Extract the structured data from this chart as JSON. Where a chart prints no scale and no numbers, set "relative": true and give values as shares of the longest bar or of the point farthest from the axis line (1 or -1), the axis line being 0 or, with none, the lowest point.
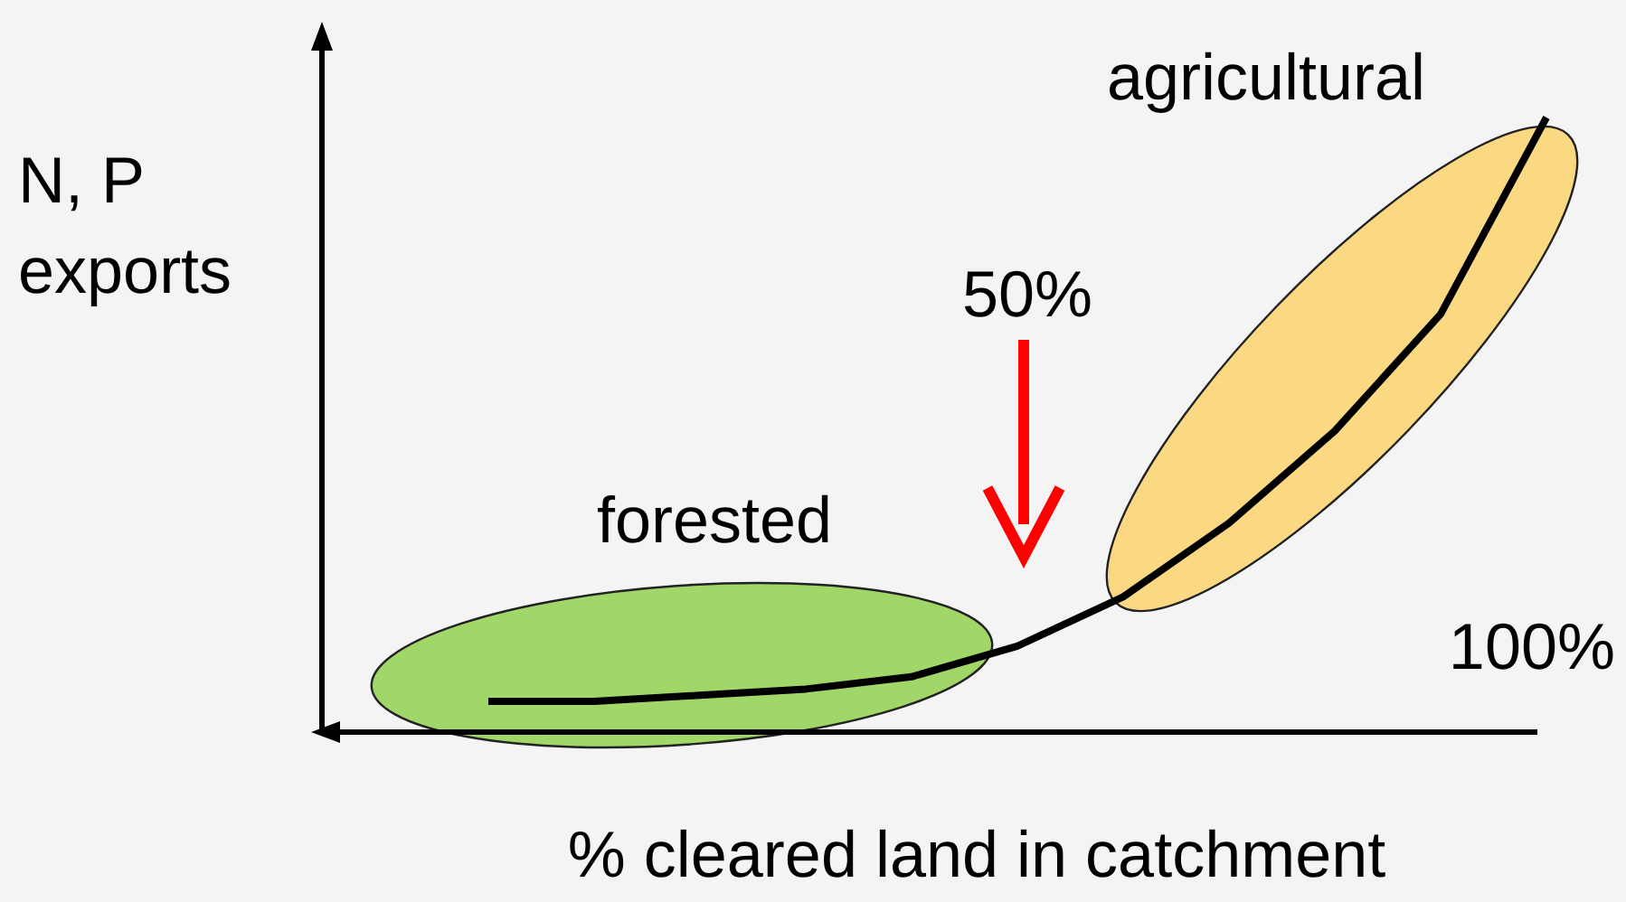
{
  "chart_data": {
    "type": "line",
    "relative": true,
    "xlabel": "% cleared land in catchment",
    "ylabel": "N, P\nexports",
    "categories": [
      null,
      null,
      null,
      null,
      null,
      null,
      null,
      null,
      null,
      null,
      null
    ],
    "series": [
      {
        "color": "#000000",
        "values": [
          0.05,
          0.05,
          0.06,
          0.07,
          0.09,
          0.14,
          0.22,
          0.34,
          0.49,
          0.68,
          1
        ]
      }
    ],
    "annotations": [
      "forested",
      "agricultural",
      "50%",
      "100%"
    ],
    "marker": "none",
    "line_style": "solid"
  }
}
